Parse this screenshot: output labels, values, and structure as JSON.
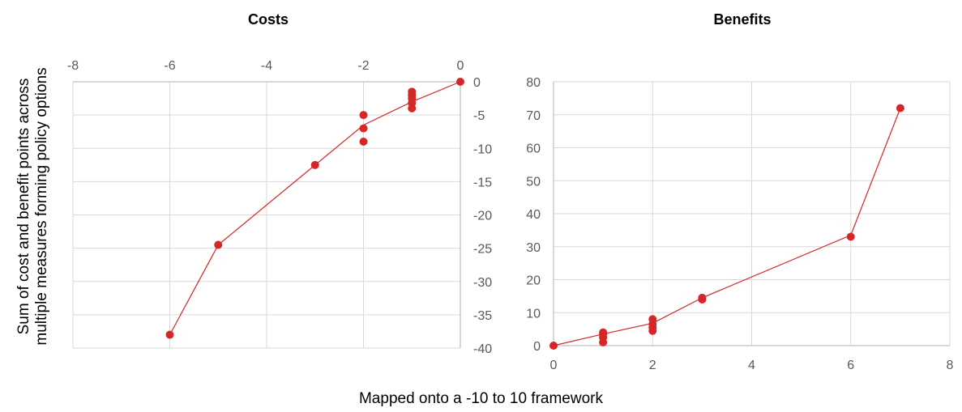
{
  "figure": {
    "ylabel_lines": [
      "Sum of cost and benefit points across",
      "multiple measures forming policy options"
    ],
    "xlabel": "Mapped onto a -10 to 10 framework"
  },
  "colors": {
    "series": "#d62728",
    "grid": "#d9d9d9",
    "axis": "#bfbfbf",
    "text": "#595959"
  },
  "chart_data": [
    {
      "type": "scatter",
      "title": "Costs",
      "xlim": [
        -8,
        0
      ],
      "ylim": [
        -40,
        0
      ],
      "xticks": [
        -8,
        -6,
        -4,
        -2,
        0
      ],
      "yticks": [
        0,
        -5,
        -10,
        -15,
        -20,
        -25,
        -30,
        -35,
        -40
      ],
      "x_axis_position": "top",
      "y_axis_position": "right",
      "grid": true,
      "points": [
        {
          "x": 0,
          "y": 0
        },
        {
          "x": -1,
          "y": -1.5
        },
        {
          "x": -1,
          "y": -2
        },
        {
          "x": -1,
          "y": -2.5
        },
        {
          "x": -1,
          "y": -3.2
        },
        {
          "x": -1,
          "y": -4
        },
        {
          "x": -2,
          "y": -5
        },
        {
          "x": -2,
          "y": -7
        },
        {
          "x": -2,
          "y": -9
        },
        {
          "x": -3,
          "y": -12.5
        },
        {
          "x": -5,
          "y": -24.5
        },
        {
          "x": -6,
          "y": -38
        }
      ],
      "line": [
        {
          "x": 0,
          "y": 0
        },
        {
          "x": -1,
          "y": -3
        },
        {
          "x": -2,
          "y": -6.5
        },
        {
          "x": -3,
          "y": -12.5
        },
        {
          "x": -5,
          "y": -24.5
        },
        {
          "x": -6,
          "y": -38
        }
      ]
    },
    {
      "type": "scatter",
      "title": "Benefits",
      "xlim": [
        0,
        8
      ],
      "ylim": [
        0,
        80
      ],
      "xticks": [
        0,
        2,
        4,
        6,
        8
      ],
      "yticks": [
        0,
        10,
        20,
        30,
        40,
        50,
        60,
        70,
        80
      ],
      "x_axis_position": "bottom",
      "y_axis_position": "left",
      "grid": true,
      "points": [
        {
          "x": 0,
          "y": 0
        },
        {
          "x": 1,
          "y": 1
        },
        {
          "x": 1,
          "y": 2.5
        },
        {
          "x": 1,
          "y": 3.5
        },
        {
          "x": 1,
          "y": 4
        },
        {
          "x": 2,
          "y": 4.5
        },
        {
          "x": 2,
          "y": 5.5
        },
        {
          "x": 2,
          "y": 6.5
        },
        {
          "x": 2,
          "y": 8
        },
        {
          "x": 3,
          "y": 14
        },
        {
          "x": 3,
          "y": 14.5
        },
        {
          "x": 6,
          "y": 33
        },
        {
          "x": 7,
          "y": 72
        }
      ],
      "line": [
        {
          "x": 0,
          "y": 0
        },
        {
          "x": 1,
          "y": 3.5
        },
        {
          "x": 2,
          "y": 6.8
        },
        {
          "x": 3,
          "y": 14.5
        },
        {
          "x": 6,
          "y": 33.5
        },
        {
          "x": 7,
          "y": 72
        }
      ]
    }
  ]
}
